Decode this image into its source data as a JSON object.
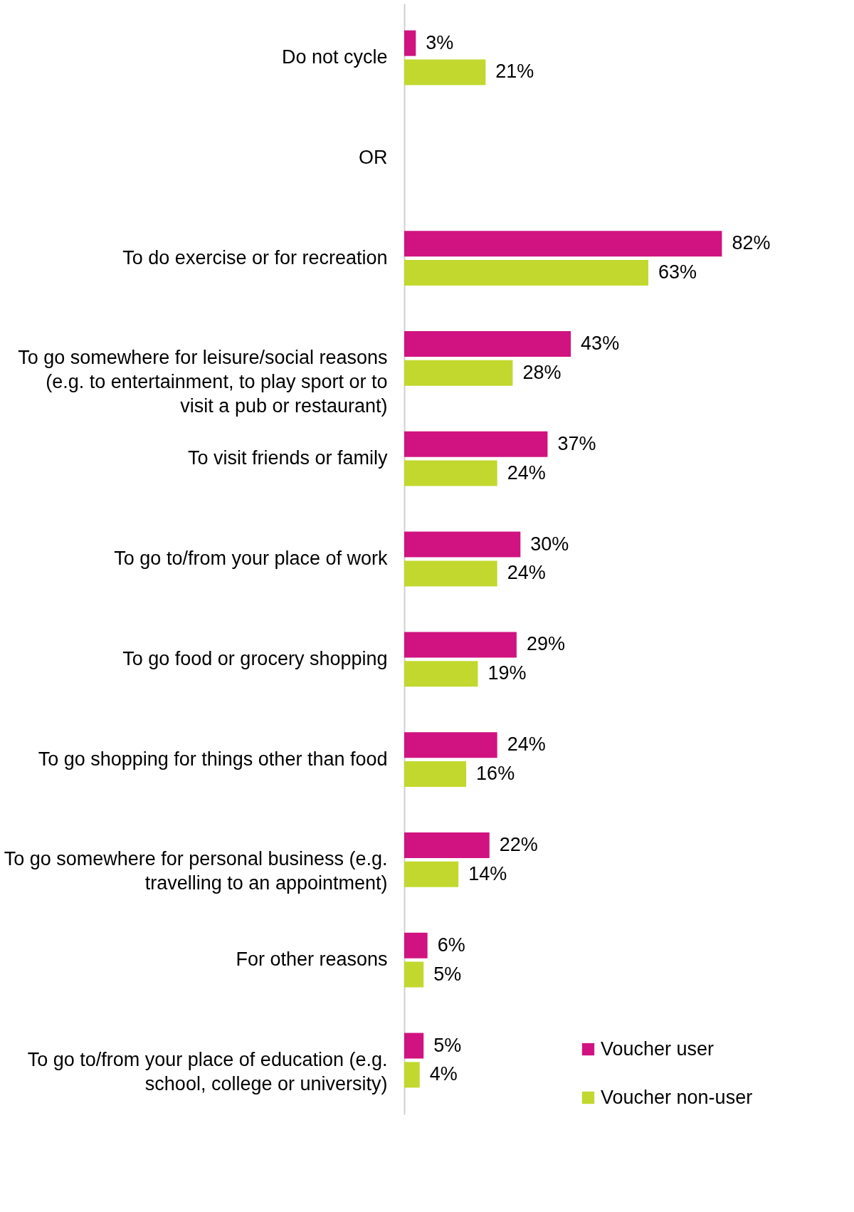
{
  "chart_data": {
    "type": "bar",
    "orientation": "horizontal",
    "categories": [
      "Do not cycle",
      "OR",
      "To do exercise or for recreation",
      "To go somewhere for leisure/social reasons (e.g. to entertainment, to play sport or to visit a pub or restaurant)",
      "To visit friends or family",
      "To go to/from your place of work",
      "To go food or grocery shopping",
      "To go shopping for things other than food",
      "To go somewhere for personal business (e.g. travelling to an appointment)",
      "For other reasons",
      "To go to/from your place of education (e.g. school, college or university)"
    ],
    "series": [
      {
        "name": "Voucher user",
        "color": "#d01380",
        "values": [
          3,
          null,
          82,
          43,
          37,
          30,
          29,
          24,
          22,
          6,
          5
        ],
        "value_labels": [
          "3%",
          null,
          "82%",
          "43%",
          "37%",
          "30%",
          "29%",
          "24%",
          "22%",
          "6%",
          "5%"
        ]
      },
      {
        "name": "Voucher non-user",
        "color": "#c2d82e",
        "values": [
          21,
          null,
          63,
          28,
          24,
          24,
          19,
          16,
          14,
          5,
          4
        ],
        "value_labels": [
          "21%",
          null,
          "63%",
          "28%",
          "24%",
          "24%",
          "19%",
          "16%",
          "14%",
          "5%",
          "4%"
        ]
      }
    ],
    "legend": "bottom right",
    "grid": false
  }
}
